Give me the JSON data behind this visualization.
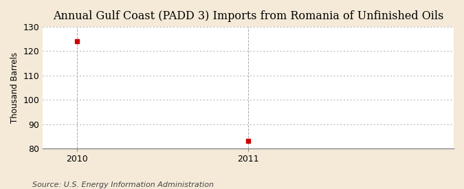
{
  "title": "Annual Gulf Coast (PADD 3) Imports from Romania of Unfinished Oils",
  "ylabel": "Thousand Barrels",
  "source": "Source: U.S. Energy Information Administration",
  "x": [
    2010,
    2011
  ],
  "y": [
    124,
    83
  ],
  "xlim": [
    2009.8,
    2012.2
  ],
  "ylim": [
    80,
    130
  ],
  "yticks": [
    80,
    90,
    100,
    110,
    120,
    130
  ],
  "xticks": [
    2010,
    2011
  ],
  "marker_color": "#cc0000",
  "marker": "s",
  "marker_size": 4,
  "plot_bg_color": "#ffffff",
  "fig_bg_color": "#f5ead8",
  "grid_color": "#aaaaaa",
  "title_fontsize": 11.5,
  "axis_fontsize": 8.5,
  "tick_fontsize": 9,
  "source_fontsize": 8
}
